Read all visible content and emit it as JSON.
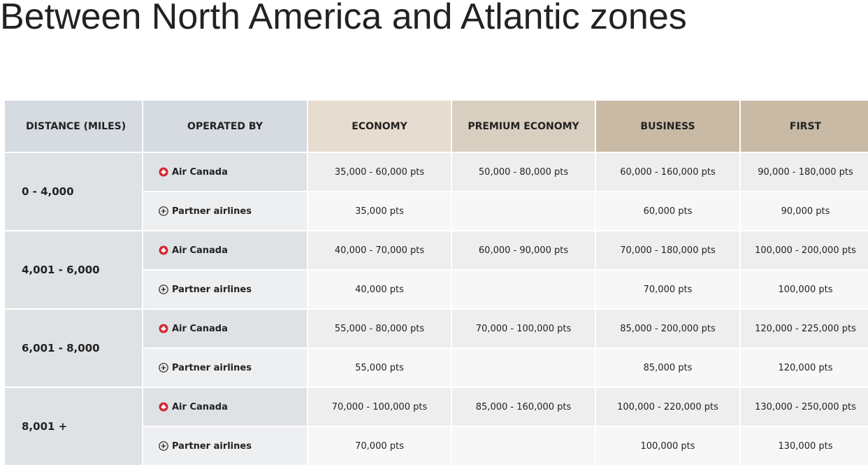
{
  "header": {
    "title": "Between North America and Atlantic zones"
  },
  "table": {
    "headers": [
      "DISTANCE (MILES)",
      "OPERATED BY",
      "ECONOMY",
      "PREMIUM ECONOMY",
      "BUSINESS",
      "FIRST"
    ],
    "rows": [
      {
        "distance": "0 - 4,000",
        "air_canada": {
          "label": "Air Canada",
          "values": [
            "35,000 - 60,000 pts",
            "50,000 - 80,000 pts",
            "60,000 - 160,000 pts",
            "90,000 - 180,000 pts"
          ]
        },
        "partner": {
          "label": "Partner airlines",
          "values": [
            "35,000 pts",
            null,
            "60,000 pts",
            "90,000 pts"
          ]
        }
      },
      {
        "distance": "4,001 - 6,000",
        "air_canada": {
          "label": "Air Canada",
          "values": [
            "40,000 - 70,000 pts",
            "60,000 - 90,000 pts",
            "70,000 - 180,000 pts",
            "100,000 - 200,000 pts"
          ]
        },
        "partner": {
          "label": "Partner airlines",
          "values": [
            "40,000 pts",
            null,
            "70,000 pts",
            "100,000 pts"
          ]
        }
      },
      {
        "distance": "6,001 - 8,000",
        "air_canada": {
          "label": "Air Canada",
          "values": [
            "55,000 - 80,000 pts",
            "70,000 - 100,000 pts",
            "85,000 - 200,000 pts",
            "120,000 - 225,000 pts"
          ]
        },
        "partner": {
          "label": "Partner airlines",
          "values": [
            "55,000 pts",
            null,
            "85,000 pts",
            "120,000 pts"
          ]
        }
      },
      {
        "distance": "8,001 +",
        "air_canada": {
          "label": "Air Canada",
          "values": [
            "70,000 - 100,000 pts",
            "85,000 - 160,000 pts",
            "100,000 - 220,000 pts",
            "130,000 - 250,000 pts"
          ]
        },
        "partner": {
          "label": "Partner airlines",
          "values": [
            "70,000 pts",
            null,
            "100,000 pts",
            "130,000 pts"
          ]
        }
      }
    ]
  }
}
